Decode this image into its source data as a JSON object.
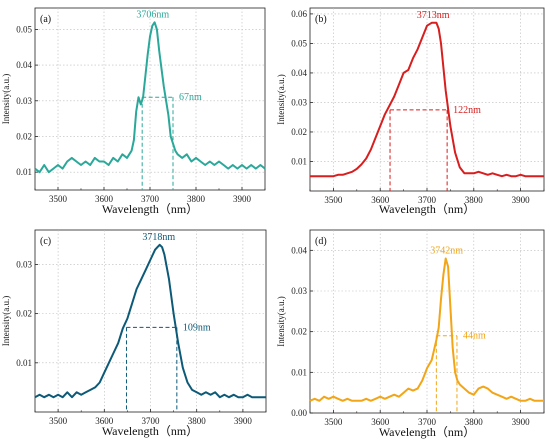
{
  "chart_data": [
    {
      "type": "line",
      "panel_label": "(a)",
      "xlabel": "Wavelength（nm）",
      "ylabel": "Intensity(a.u.)",
      "xlim": [
        3450,
        3950
      ],
      "ylim": [
        0.005,
        0.056
      ],
      "xticks": [
        "3500",
        "3600",
        "3700",
        "3800",
        "3900"
      ],
      "yticks": [
        "0.01",
        "0.02",
        "0.03",
        "0.04",
        "0.05"
      ],
      "ytick_values": [
        0.01,
        0.02,
        0.03,
        0.04,
        0.05
      ],
      "color": "#2aa89a",
      "grid": true,
      "peak": {
        "x": 3706,
        "y": 0.052,
        "label": "3706nm"
      },
      "fwhm": {
        "x1": 3683,
        "x2": 3750,
        "y": 0.031,
        "label": "67nm"
      },
      "series": [
        {
          "x": [
            3450,
            3460,
            3470,
            3480,
            3490,
            3500,
            3510,
            3520,
            3530,
            3540,
            3550,
            3560,
            3570,
            3580,
            3590,
            3600,
            3610,
            3620,
            3630,
            3640,
            3650,
            3660,
            3665,
            3670,
            3675,
            3680,
            3685,
            3690,
            3695,
            3700,
            3705,
            3710,
            3715,
            3720,
            3725,
            3730,
            3735,
            3740,
            3745,
            3750,
            3755,
            3760,
            3770,
            3780,
            3790,
            3800,
            3810,
            3820,
            3830,
            3840,
            3850,
            3860,
            3870,
            3880,
            3890,
            3900,
            3910,
            3920,
            3930,
            3940,
            3950
          ],
          "y": [
            0.011,
            0.01,
            0.012,
            0.01,
            0.011,
            0.012,
            0.011,
            0.013,
            0.014,
            0.013,
            0.012,
            0.013,
            0.012,
            0.014,
            0.013,
            0.013,
            0.012,
            0.014,
            0.013,
            0.015,
            0.014,
            0.016,
            0.019,
            0.027,
            0.031,
            0.029,
            0.031,
            0.037,
            0.043,
            0.048,
            0.051,
            0.052,
            0.05,
            0.044,
            0.039,
            0.034,
            0.03,
            0.026,
            0.02,
            0.018,
            0.016,
            0.015,
            0.014,
            0.015,
            0.013,
            0.014,
            0.013,
            0.012,
            0.013,
            0.012,
            0.013,
            0.012,
            0.011,
            0.012,
            0.011,
            0.012,
            0.011,
            0.012,
            0.011,
            0.012,
            0.011
          ]
        }
      ]
    },
    {
      "type": "line",
      "panel_label": "(b)",
      "xlabel": "Wavelength（nm）",
      "ylabel": "Intensity(a.u.)",
      "xlim": [
        3450,
        3950
      ],
      "ylim": [
        0.0,
        0.062
      ],
      "xticks": [
        "3500",
        "3600",
        "3700",
        "3800",
        "3900"
      ],
      "yticks": [
        "0.01",
        "0.02",
        "0.03",
        "0.04",
        "0.05",
        "0.06"
      ],
      "ytick_values": [
        0.01,
        0.02,
        0.03,
        0.04,
        0.05,
        0.06
      ],
      "color": "#d81e1e",
      "grid": true,
      "peak": {
        "x": 3713,
        "y": 0.057,
        "label": "3713nm"
      },
      "fwhm": {
        "x1": 3621,
        "x2": 3743,
        "y": 0.0275,
        "label": "122nm"
      },
      "series": [
        {
          "x": [
            3450,
            3460,
            3470,
            3480,
            3490,
            3500,
            3510,
            3520,
            3530,
            3540,
            3550,
            3560,
            3570,
            3580,
            3590,
            3600,
            3610,
            3620,
            3630,
            3640,
            3650,
            3660,
            3670,
            3680,
            3690,
            3700,
            3710,
            3720,
            3725,
            3730,
            3740,
            3750,
            3760,
            3770,
            3780,
            3790,
            3800,
            3810,
            3820,
            3830,
            3840,
            3850,
            3860,
            3870,
            3880,
            3890,
            3900,
            3910,
            3920,
            3930,
            3940,
            3950
          ],
          "y": [
            0.005,
            0.005,
            0.005,
            0.005,
            0.005,
            0.005,
            0.0055,
            0.0055,
            0.006,
            0.0065,
            0.0075,
            0.009,
            0.011,
            0.014,
            0.018,
            0.022,
            0.026,
            0.029,
            0.032,
            0.036,
            0.04,
            0.041,
            0.045,
            0.048,
            0.052,
            0.056,
            0.057,
            0.057,
            0.055,
            0.05,
            0.034,
            0.022,
            0.013,
            0.008,
            0.006,
            0.006,
            0.006,
            0.0065,
            0.006,
            0.0055,
            0.006,
            0.0055,
            0.005,
            0.0055,
            0.005,
            0.005,
            0.0055,
            0.005,
            0.005,
            0.005,
            0.005,
            0.005
          ]
        }
      ]
    },
    {
      "type": "line",
      "panel_label": "(c)",
      "xlabel": "Wavelength（nm）",
      "ylabel": "Intensity(a.u.)",
      "xlim": [
        3450,
        3950
      ],
      "ylim": [
        0.0,
        0.037
      ],
      "xticks": [
        "3500",
        "3600",
        "3700",
        "3800",
        "3900"
      ],
      "yticks": [
        "0.01",
        "0.02",
        "0.03"
      ],
      "ytick_values": [
        0.01,
        0.02,
        0.03
      ],
      "color": "#0d5a78",
      "grid": true,
      "peak": {
        "x": 3718,
        "y": 0.034,
        "label": "3718nm"
      },
      "fwhm": {
        "x1": 3648,
        "x2": 3757,
        "y": 0.0172,
        "label": "109nm"
      },
      "series": [
        {
          "x": [
            3450,
            3460,
            3470,
            3480,
            3490,
            3500,
            3510,
            3520,
            3530,
            3540,
            3550,
            3560,
            3570,
            3580,
            3590,
            3600,
            3610,
            3620,
            3630,
            3640,
            3650,
            3660,
            3670,
            3680,
            3690,
            3700,
            3710,
            3715,
            3720,
            3725,
            3730,
            3740,
            3750,
            3760,
            3770,
            3780,
            3790,
            3800,
            3810,
            3820,
            3830,
            3840,
            3850,
            3860,
            3870,
            3880,
            3890,
            3900,
            3910,
            3920,
            3930,
            3940,
            3950
          ],
          "y": [
            0.003,
            0.0035,
            0.003,
            0.0035,
            0.003,
            0.0035,
            0.003,
            0.004,
            0.003,
            0.004,
            0.0035,
            0.004,
            0.0045,
            0.005,
            0.006,
            0.008,
            0.01,
            0.012,
            0.014,
            0.017,
            0.019,
            0.022,
            0.025,
            0.027,
            0.029,
            0.031,
            0.033,
            0.0335,
            0.034,
            0.0335,
            0.032,
            0.027,
            0.02,
            0.014,
            0.009,
            0.006,
            0.0045,
            0.004,
            0.0035,
            0.004,
            0.0035,
            0.004,
            0.003,
            0.0035,
            0.003,
            0.0035,
            0.003,
            0.003,
            0.0035,
            0.003,
            0.003,
            0.003,
            0.003
          ]
        }
      ]
    },
    {
      "type": "line",
      "panel_label": "(d)",
      "xlabel": "Wavelength（nm）",
      "ylabel": "Intensity(a.u.)",
      "xlim": [
        3450,
        3950
      ],
      "ylim": [
        0.0,
        0.045
      ],
      "xticks": [
        "3500",
        "3600",
        "3700",
        "3800",
        "3900"
      ],
      "yticks": [
        "0.00",
        "0.01",
        "0.02",
        "0.03",
        "0.04"
      ],
      "ytick_values": [
        0.0,
        0.01,
        0.02,
        0.03,
        0.04
      ],
      "color": "#f2a516",
      "grid": true,
      "peak": {
        "x": 3742,
        "y": 0.038,
        "label": "3742nm"
      },
      "fwhm": {
        "x1": 3720,
        "x2": 3764,
        "y": 0.019,
        "label": "44nm"
      },
      "series": [
        {
          "x": [
            3450,
            3460,
            3470,
            3480,
            3490,
            3500,
            3510,
            3520,
            3530,
            3540,
            3550,
            3560,
            3570,
            3580,
            3590,
            3600,
            3610,
            3620,
            3630,
            3640,
            3650,
            3660,
            3670,
            3680,
            3690,
            3700,
            3710,
            3720,
            3725,
            3730,
            3735,
            3740,
            3745,
            3750,
            3755,
            3760,
            3765,
            3770,
            3780,
            3790,
            3800,
            3810,
            3820,
            3830,
            3840,
            3850,
            3860,
            3870,
            3880,
            3890,
            3900,
            3910,
            3920,
            3930,
            3940,
            3950
          ],
          "y": [
            0.003,
            0.0035,
            0.003,
            0.004,
            0.0035,
            0.004,
            0.0035,
            0.003,
            0.0035,
            0.003,
            0.003,
            0.003,
            0.0035,
            0.003,
            0.0035,
            0.004,
            0.0035,
            0.004,
            0.0045,
            0.004,
            0.005,
            0.006,
            0.0055,
            0.006,
            0.008,
            0.011,
            0.013,
            0.018,
            0.021,
            0.028,
            0.034,
            0.038,
            0.036,
            0.026,
            0.016,
            0.01,
            0.008,
            0.007,
            0.006,
            0.005,
            0.0045,
            0.006,
            0.0065,
            0.006,
            0.005,
            0.0045,
            0.004,
            0.0035,
            0.004,
            0.0035,
            0.003,
            0.003,
            0.0035,
            0.003,
            0.003,
            0.003
          ]
        }
      ]
    }
  ]
}
